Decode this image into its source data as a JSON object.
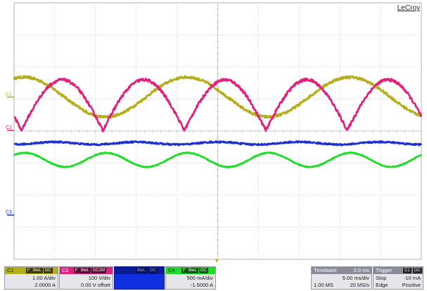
{
  "brand": "LeCroy",
  "chart_data": {
    "type": "line",
    "grid": true,
    "x_divisions": 10,
    "y_divisions": 8,
    "time_per_div": "5.00 ms/div",
    "series": [
      {
        "name": "C1",
        "color": "#b5ae1b",
        "label": "C1",
        "scale": "1.00 A/div",
        "offset": "2.0000 A",
        "waveform": "sine",
        "amplitude_div": 0.62,
        "center_div": 1.06,
        "period_ms": 20,
        "phase_ms": -3.8,
        "noise": 0.08
      },
      {
        "name": "C2",
        "color": "#e0207c",
        "label": "C2",
        "scale": "100 V/div",
        "offset": "0.00 V offset",
        "waveform": "rectified_sine",
        "amplitude_div": 1.58,
        "center_div": 0.02,
        "period_ms": 10,
        "phase_ms": 0.9,
        "noise": 0.09
      },
      {
        "name": "C3",
        "color": "#1d2fd0",
        "label": "",
        "scale": "",
        "offset": "",
        "waveform": "sine",
        "amplitude_div": 0.04,
        "center_div": -0.38,
        "period_ms": 10,
        "phase_ms": 2.5,
        "noise": 0.05
      },
      {
        "name": "C4",
        "color": "#1cdc28",
        "label": "",
        "scale": "500 mA/div",
        "offset": "-1.5000 A",
        "waveform": "sine",
        "amplitude_div": 0.22,
        "center_div": -0.9,
        "period_ms": 10,
        "phase_ms": -1.2,
        "noise": 0.03
      }
    ],
    "markers": [
      {
        "label": "C1",
        "color": "#b5ae1b",
        "level_div": 1.06
      },
      {
        "label": "C2",
        "color": "#e0207c",
        "level_div": 0.02
      },
      {
        "label": "C3",
        "color": "#1d2fd0",
        "level_div": -2.62
      }
    ]
  },
  "channels": {
    "c1": {
      "name": "C1",
      "chip_a": "F",
      "chip_b": "BwL",
      "chip_c": "DC",
      "scale": "1.00 A/div",
      "offset": "2.0000 A"
    },
    "c2": {
      "name": "C2",
      "chip_a": "F",
      "chip_b": "BwL",
      "chip_c": "DC1M",
      "scale": "100 V/div",
      "offset": "0.00 V offset"
    },
    "c3": {
      "name": "",
      "chip_a": "",
      "chip_b": "BwL",
      "chip_c": "DC",
      "scale": "",
      "offset": ""
    },
    "c4": {
      "name": "C4",
      "chip_a": "F",
      "chip_b": "BwL",
      "chip_c": "DC",
      "scale": "500 mA/div",
      "offset": "-1.5000 A"
    }
  },
  "timebase": {
    "title": "Timebase",
    "delay": "0.0 ms",
    "per_div": "5.00 ms/div",
    "samples": "1.00 MS",
    "rate": "20 MS/s"
  },
  "trigger": {
    "title": "Trigger",
    "chip_a": "C1",
    "chip_b": "DC",
    "mode": "Stop",
    "level": "-10 mA",
    "type": "Edge",
    "slope": "Positive"
  },
  "colors": {
    "background": "#ffffff",
    "grid": "#c8c8c8",
    "panel": "#e6e6ea",
    "trigger_marker": "#c8a000"
  }
}
